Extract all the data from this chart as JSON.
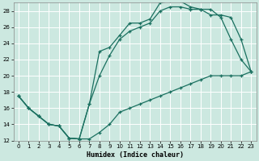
{
  "xlabel": "Humidex (Indice chaleur)",
  "background_color": "#cce8e0",
  "grid_color": "#ffffff",
  "line_color": "#1a7060",
  "xlim": [
    -0.5,
    23.5
  ],
  "ylim": [
    12,
    29
  ],
  "xticks": [
    0,
    1,
    2,
    3,
    4,
    5,
    6,
    7,
    8,
    9,
    10,
    11,
    12,
    13,
    14,
    15,
    16,
    17,
    18,
    19,
    20,
    21,
    22,
    23
  ],
  "yticks": [
    12,
    14,
    16,
    18,
    20,
    22,
    24,
    26,
    28
  ],
  "curve1_x": [
    0,
    1,
    2,
    3,
    4,
    5,
    6,
    7,
    8,
    9,
    10,
    11,
    12,
    13,
    14,
    15,
    16,
    17,
    18,
    19,
    20,
    21,
    22,
    23
  ],
  "curve1_y": [
    17.5,
    16.0,
    15.0,
    14.0,
    13.8,
    12.3,
    12.2,
    16.5,
    23.0,
    23.5,
    25.0,
    26.5,
    26.5,
    27.0,
    29.0,
    29.2,
    29.2,
    28.5,
    28.2,
    28.2,
    27.2,
    24.5,
    22.0,
    20.5
  ],
  "curve2_x": [
    0,
    1,
    2,
    3,
    4,
    5,
    6,
    7,
    8,
    9,
    10,
    11,
    12,
    13,
    14,
    15,
    16,
    17,
    18,
    19,
    20,
    21,
    22,
    23
  ],
  "curve2_y": [
    17.5,
    16.0,
    15.0,
    14.0,
    13.8,
    12.3,
    12.2,
    12.2,
    13.0,
    14.0,
    15.5,
    16.0,
    16.5,
    17.0,
    17.5,
    18.0,
    18.5,
    19.0,
    19.5,
    20.0,
    20.0,
    20.0,
    20.0,
    20.5
  ],
  "curve3_x": [
    0,
    1,
    2,
    3,
    4,
    5,
    6,
    7,
    8,
    9,
    10,
    11,
    12,
    13,
    14,
    15,
    16,
    17,
    18,
    19,
    20,
    21,
    22,
    23
  ],
  "curve3_y": [
    17.5,
    16.0,
    15.0,
    14.0,
    13.8,
    12.3,
    12.2,
    16.5,
    20.0,
    22.5,
    24.5,
    25.5,
    26.0,
    26.5,
    28.0,
    28.5,
    28.5,
    28.2,
    28.2,
    27.5,
    27.5,
    27.2,
    24.5,
    20.5
  ]
}
